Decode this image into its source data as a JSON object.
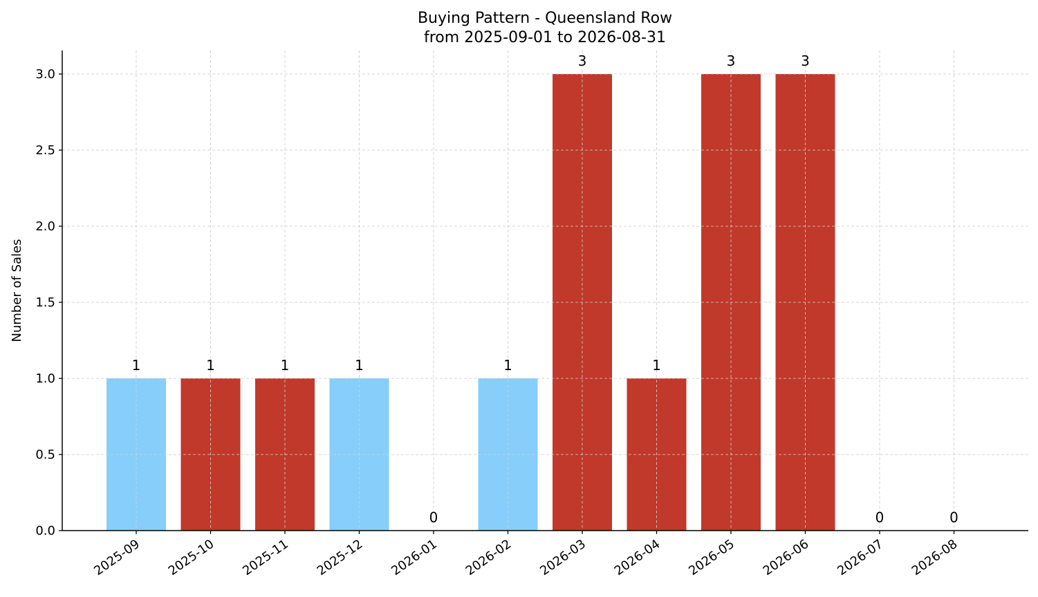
{
  "chart_data": {
    "type": "bar",
    "title": "Buying Pattern - Queensland Row",
    "subtitle": "from 2025-09-01 to 2026-08-31",
    "xlabel": "",
    "ylabel": "Number of Sales",
    "categories": [
      "2025-09",
      "2025-10",
      "2025-11",
      "2025-12",
      "2026-01",
      "2026-02",
      "2026-03",
      "2026-04",
      "2026-05",
      "2026-06",
      "2026-07",
      "2026-08"
    ],
    "values": [
      1,
      1,
      1,
      1,
      0,
      1,
      3,
      1,
      3,
      3,
      0,
      0
    ],
    "bar_colors": [
      "#87CEFA",
      "#C0392B",
      "#C0392B",
      "#87CEFA",
      "#C0392B",
      "#87CEFA",
      "#C0392B",
      "#C0392B",
      "#C0392B",
      "#C0392B",
      "#C0392B",
      "#C0392B"
    ],
    "data_labels": [
      "1",
      "1",
      "1",
      "1",
      "0",
      "1",
      "3",
      "1",
      "3",
      "3",
      "0",
      "0"
    ],
    "ylim": [
      0,
      3.15
    ],
    "yticks": [
      0.0,
      0.5,
      1.0,
      1.5,
      2.0,
      2.5,
      3.0
    ],
    "ytick_labels": [
      "0.0",
      "0.5",
      "1.0",
      "1.5",
      "2.0",
      "2.5",
      "3.0"
    ],
    "grid": true,
    "legend": "none"
  }
}
